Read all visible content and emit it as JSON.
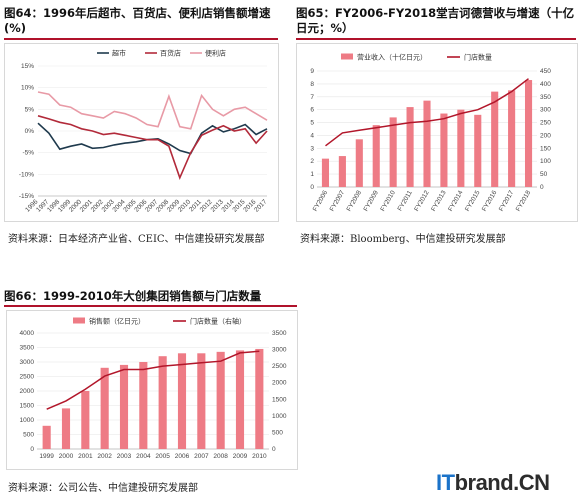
{
  "figures": [
    {
      "title": "图64：1996年后超市、百货店、便利店销售额增速(%)",
      "source": "资料来源：日本经济产业省、CEIC、中信建投研究发展部"
    },
    {
      "title": "图65：FY2006-FY2018堂吉诃德营收与增速（十亿日元；%）",
      "source": "资料来源：Bloomberg、中信建投研究发展部"
    },
    {
      "title": "图66：1999-2010年大创集团销售额与门店数量",
      "source": "资料来源：公司公告、中信建投研究发展部"
    }
  ],
  "watermark": {
    "prefix": "IT",
    "rest": "brand.CN"
  },
  "chart_data": [
    {
      "type": "line",
      "title": "图64：1996年后超市、百货店、便利店销售额增速(%)",
      "x": [
        "1996",
        "1997",
        "1998",
        "1999",
        "2000",
        "2001",
        "2002",
        "2003",
        "2004",
        "2005",
        "2006",
        "2007",
        "2008",
        "2009",
        "2010",
        "2011",
        "2012",
        "2013",
        "2014",
        "2015",
        "2016",
        "2017"
      ],
      "series": [
        {
          "name": "超市",
          "color": "#1f3a4d",
          "values": [
            1.8,
            -0.5,
            -4.2,
            -3.5,
            -3.0,
            -4.0,
            -3.8,
            -3.2,
            -2.8,
            -2.5,
            -2.0,
            -1.8,
            -3.0,
            -4.5,
            -5.2,
            -0.5,
            1.2,
            -0.2,
            0.5,
            1.5,
            -0.8,
            0.5
          ]
        },
        {
          "name": "百货店",
          "color": "#b22a3a",
          "values": [
            3.5,
            2.8,
            2.0,
            1.5,
            0.5,
            0.0,
            -0.8,
            -0.5,
            -1.0,
            -1.5,
            -2.0,
            -2.0,
            -3.5,
            -10.8,
            -5.0,
            -1.0,
            0.2,
            1.2,
            0.0,
            0.5,
            -2.8,
            0.0
          ]
        },
        {
          "name": "便利店",
          "color": "#e89aa6",
          "values": [
            9.0,
            8.5,
            6.0,
            5.5,
            4.0,
            3.5,
            3.0,
            4.5,
            4.0,
            3.0,
            1.5,
            1.0,
            8.0,
            1.0,
            0.5,
            8.2,
            5.0,
            3.5,
            5.0,
            5.5,
            4.0,
            2.5
          ]
        }
      ],
      "yticks": [
        "15%",
        "10%",
        "5%",
        "0%",
        "-5%",
        "-10%",
        "-15%"
      ],
      "ylim": [
        -15,
        15
      ],
      "legend": "top-center"
    },
    {
      "type": "bar",
      "title": "图65：FY2006-FY2018堂吉诃德营收与增速（十亿日元；%）",
      "categories": [
        "FY2006",
        "FY2007",
        "FY2008",
        "FY2009",
        "FY2010",
        "FY2011",
        "FY2012",
        "FY2013",
        "FY2014",
        "FY2015",
        "FY2016",
        "FY2017",
        "FY2018"
      ],
      "series": [
        {
          "name": "营业收入（十亿日元）",
          "axis": "left",
          "type": "bar",
          "color": "#ee7b85",
          "values": [
            2.2,
            2.4,
            3.7,
            4.8,
            5.4,
            6.2,
            6.7,
            5.7,
            6.0,
            5.6,
            7.4,
            7.5,
            8.3
          ]
        },
        {
          "name": "门店数量",
          "axis": "right",
          "type": "line",
          "color": "#b2162a",
          "values": [
            160,
            210,
            220,
            230,
            240,
            250,
            255,
            265,
            285,
            300,
            330,
            370,
            420
          ]
        }
      ],
      "yticks_left": [
        "9",
        "8",
        "7",
        "6",
        "5",
        "4",
        "3",
        "2",
        "1",
        "0"
      ],
      "ylim_left": [
        0,
        9
      ],
      "yticks_right": [
        "450",
        "400",
        "350",
        "300",
        "250",
        "200",
        "150",
        "100",
        "50",
        "0"
      ],
      "ylim_right": [
        0,
        450
      ],
      "legend": "top-center"
    },
    {
      "type": "bar",
      "title": "图66：1999-2010年大创集团销售额与门店数量",
      "categories": [
        "1999",
        "2000",
        "2001",
        "2002",
        "2003",
        "2004",
        "2005",
        "2006",
        "2007",
        "2008",
        "2009",
        "2010"
      ],
      "series": [
        {
          "name": "销售额（亿日元）",
          "axis": "left",
          "type": "bar",
          "color": "#ee7b85",
          "values": [
            800,
            1400,
            2000,
            2800,
            2900,
            3000,
            3200,
            3300,
            3300,
            3350,
            3400,
            3450
          ]
        },
        {
          "name": "门店数量（右轴）",
          "axis": "right",
          "type": "line",
          "color": "#b2162a",
          "values": [
            1200,
            1450,
            1800,
            2200,
            2400,
            2400,
            2500,
            2550,
            2600,
            2650,
            2900,
            2950
          ]
        }
      ],
      "yticks_left": [
        "4000",
        "3500",
        "3000",
        "2500",
        "2000",
        "1500",
        "1000",
        "500",
        "0"
      ],
      "ylim_left": [
        0,
        4000
      ],
      "yticks_right": [
        "3500",
        "3000",
        "2500",
        "2000",
        "1500",
        "1000",
        "500",
        "0"
      ],
      "ylim_right": [
        0,
        3500
      ],
      "legend": "top-center"
    }
  ]
}
